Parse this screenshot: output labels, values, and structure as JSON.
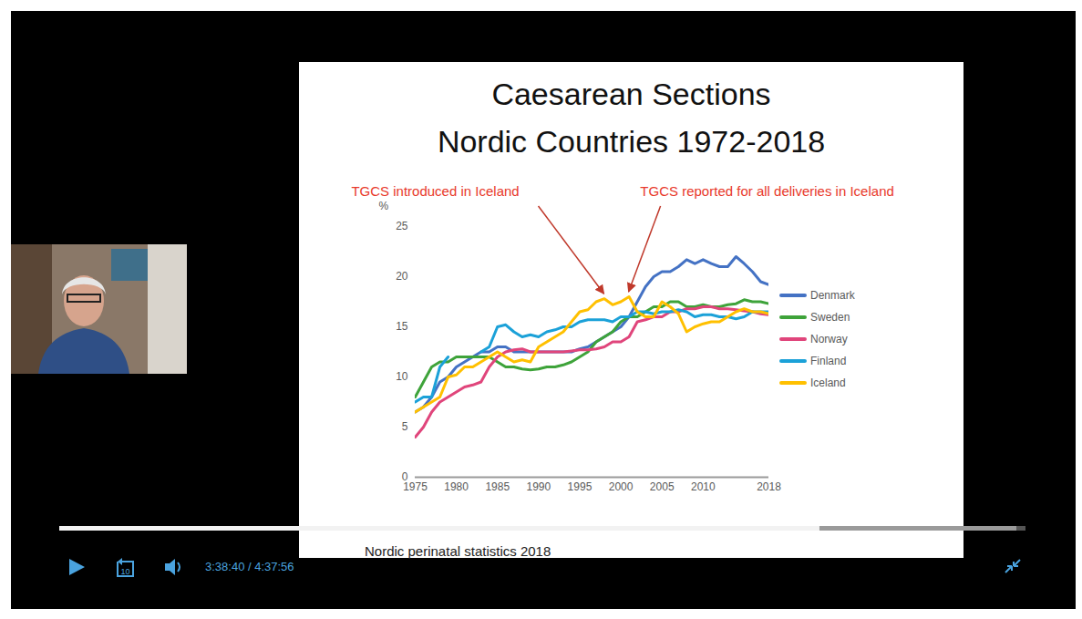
{
  "chart_data": {
    "type": "line",
    "title": "Caesarean Sections",
    "subtitle": "Nordic Countries 1972-2018",
    "y_label": "%",
    "caption": "Nordic perinatal statistics 2018",
    "annotations": [
      {
        "text": "TGCS introduced in Iceland",
        "x": 1998,
        "y": 17.8
      },
      {
        "text": "TGCS reported for all deliveries in Iceland",
        "x": 2001,
        "y": 18
      }
    ],
    "x": [
      1975,
      1976,
      1977,
      1978,
      1979,
      1980,
      1981,
      1982,
      1983,
      1984,
      1985,
      1986,
      1987,
      1988,
      1989,
      1990,
      1991,
      1992,
      1993,
      1994,
      1995,
      1996,
      1997,
      1998,
      1999,
      2000,
      2001,
      2002,
      2003,
      2004,
      2005,
      2006,
      2007,
      2008,
      2009,
      2010,
      2011,
      2012,
      2013,
      2014,
      2015,
      2016,
      2017,
      2018
    ],
    "series": [
      {
        "name": "Denmark",
        "color": "#4472c4",
        "values": [
          6.5,
          7,
          8,
          9.5,
          10,
          11,
          11.5,
          12,
          12.5,
          12.5,
          13,
          13,
          12.5,
          12.5,
          12.5,
          12.5,
          12.5,
          12.5,
          12.5,
          12.5,
          12.8,
          13,
          13.5,
          14,
          14.5,
          15,
          16,
          17.5,
          19,
          20,
          20.5,
          20.5,
          21,
          21.7,
          21.3,
          21.7,
          21.3,
          21,
          21,
          22,
          21.3,
          20.5,
          19.5,
          19.2
        ]
      },
      {
        "name": "Sweden",
        "color": "#3ea33a",
        "values": [
          8,
          9.5,
          11,
          11.5,
          11.5,
          12,
          12,
          12,
          12,
          12,
          11.5,
          11,
          11,
          10.8,
          10.7,
          10.8,
          11,
          11,
          11.2,
          11.5,
          12,
          12.5,
          13.5,
          14,
          14.5,
          15.5,
          16,
          16,
          16.5,
          17,
          17,
          17.5,
          17.5,
          17,
          17,
          17.2,
          17,
          17,
          17.2,
          17.3,
          17.7,
          17.5,
          17.5,
          17.3
        ]
      },
      {
        "name": "Norway",
        "color": "#e0457b",
        "values": [
          4,
          5,
          6.5,
          7.5,
          8,
          8.5,
          9,
          9.2,
          9.5,
          11,
          12,
          12.5,
          12.7,
          12.8,
          12.5,
          12.5,
          12.5,
          12.5,
          12.5,
          12.6,
          12.7,
          12.7,
          12.8,
          13,
          13.5,
          13.5,
          14,
          15.5,
          15.7,
          16,
          16,
          16.5,
          16.5,
          16.8,
          16.8,
          17,
          17,
          16.8,
          16.8,
          16.7,
          16.6,
          16.5,
          16.3,
          16.2
        ]
      },
      {
        "name": "Finland",
        "color": "#1ba1d8",
        "values": [
          7.5,
          8,
          8,
          11,
          12,
          null,
          null,
          null,
          12.5,
          13,
          15,
          15.2,
          14.5,
          14,
          14.2,
          14,
          14.5,
          14.7,
          15,
          15,
          15.5,
          15.7,
          15.7,
          15.7,
          15.5,
          16,
          16,
          16.5,
          16.5,
          16.3,
          16.5,
          16.5,
          16.7,
          16.5,
          16,
          16.2,
          16.2,
          16,
          16,
          15.8,
          16,
          16.5,
          16.5,
          16.5
        ]
      },
      {
        "name": "Iceland",
        "color": "#ffc000",
        "values": [
          6.5,
          7,
          7.5,
          8,
          10,
          10.2,
          11,
          11,
          11.5,
          12,
          12.5,
          12,
          11.5,
          11.7,
          11.5,
          13,
          13.5,
          14,
          14.5,
          15.5,
          16.5,
          16.7,
          17.5,
          17.8,
          17.2,
          17.5,
          18,
          16.5,
          16,
          16,
          17.5,
          17,
          16.3,
          14.5,
          15,
          15.3,
          15.5,
          15.5,
          16,
          16.5,
          16.8,
          16.5,
          16.5,
          16.3
        ]
      }
    ],
    "xlim": [
      1975,
      2018
    ],
    "xticks": [
      1975,
      1980,
      1985,
      1990,
      1995,
      2000,
      2005,
      2010,
      2018
    ],
    "ylim": [
      0,
      25
    ],
    "yticks": [
      0,
      5,
      10,
      15,
      20,
      25
    ],
    "grid": false,
    "legend": "right"
  },
  "video_player": {
    "replay_label": "10",
    "time": "3:38:40 / 4:37:56"
  }
}
